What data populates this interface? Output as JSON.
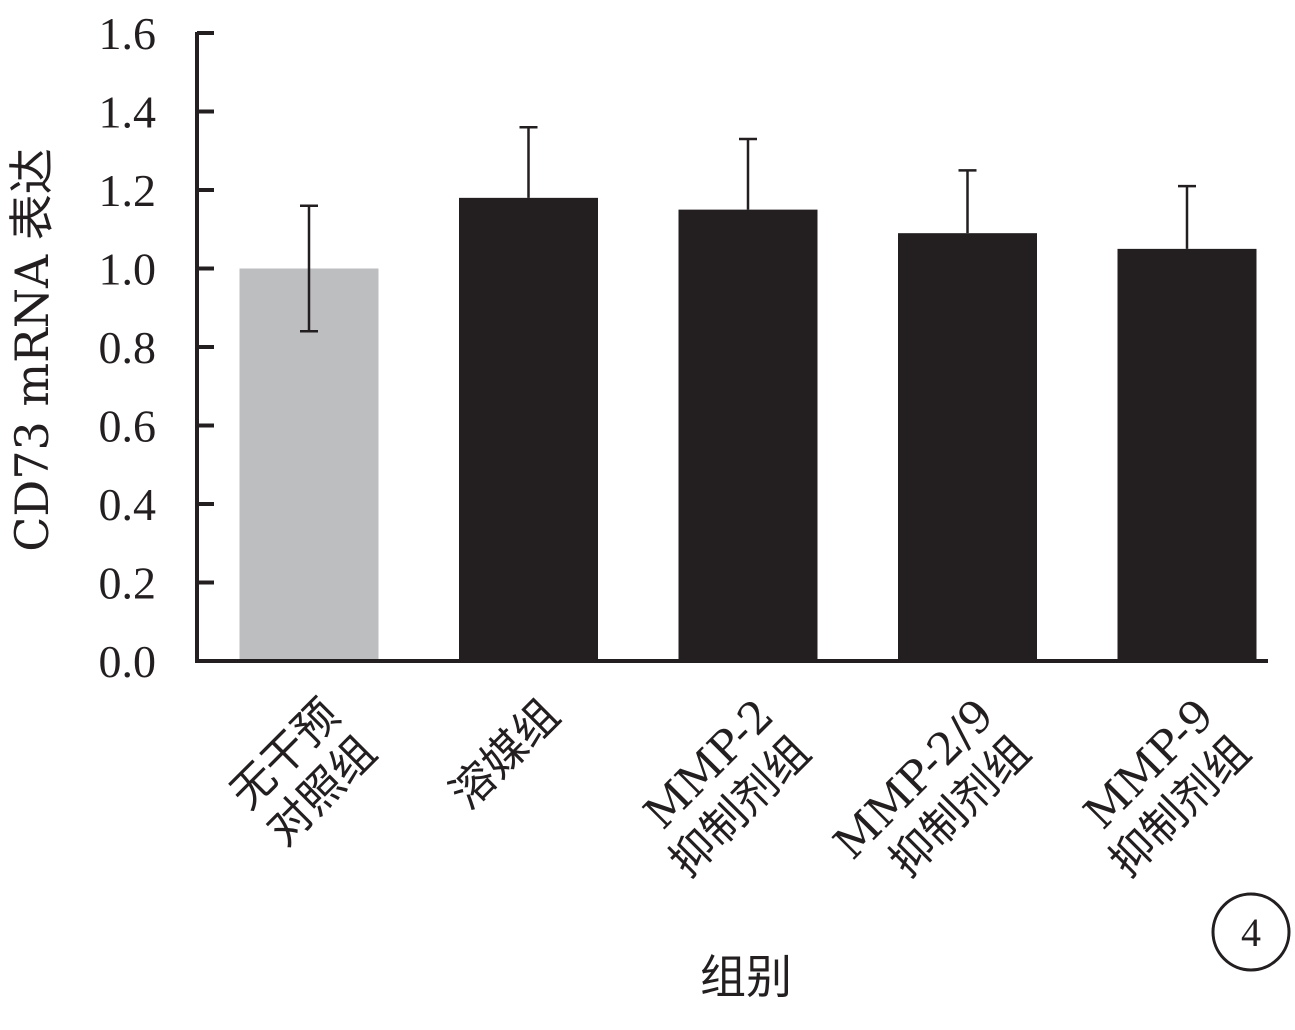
{
  "chart_data": {
    "type": "bar",
    "ylabel": "CD73 mRNA 表达",
    "xlabel": "组别",
    "ylim": [
      0,
      1.6
    ],
    "yticks": [
      "0.0",
      "0.2",
      "0.4",
      "0.6",
      "0.8",
      "1.0",
      "1.2",
      "1.4",
      "1.6"
    ],
    "categories": [
      {
        "lines": [
          "无干预",
          "对照组"
        ]
      },
      {
        "lines": [
          "溶媒组"
        ]
      },
      {
        "lines": [
          "MMP-2",
          "抑制剂组"
        ]
      },
      {
        "lines": [
          "MMP-2/9",
          "抑制剂组"
        ]
      },
      {
        "lines": [
          "MMP-9",
          "抑制剂组"
        ]
      }
    ],
    "values": [
      1.0,
      1.18,
      1.15,
      1.09,
      1.05
    ],
    "errors": [
      0.16,
      0.18,
      0.18,
      0.16,
      0.16
    ],
    "bar_colors": [
      "#bcbec0",
      "#231f20",
      "#231f20",
      "#231f20",
      "#231f20"
    ],
    "grid": false,
    "panel_label": "4"
  }
}
